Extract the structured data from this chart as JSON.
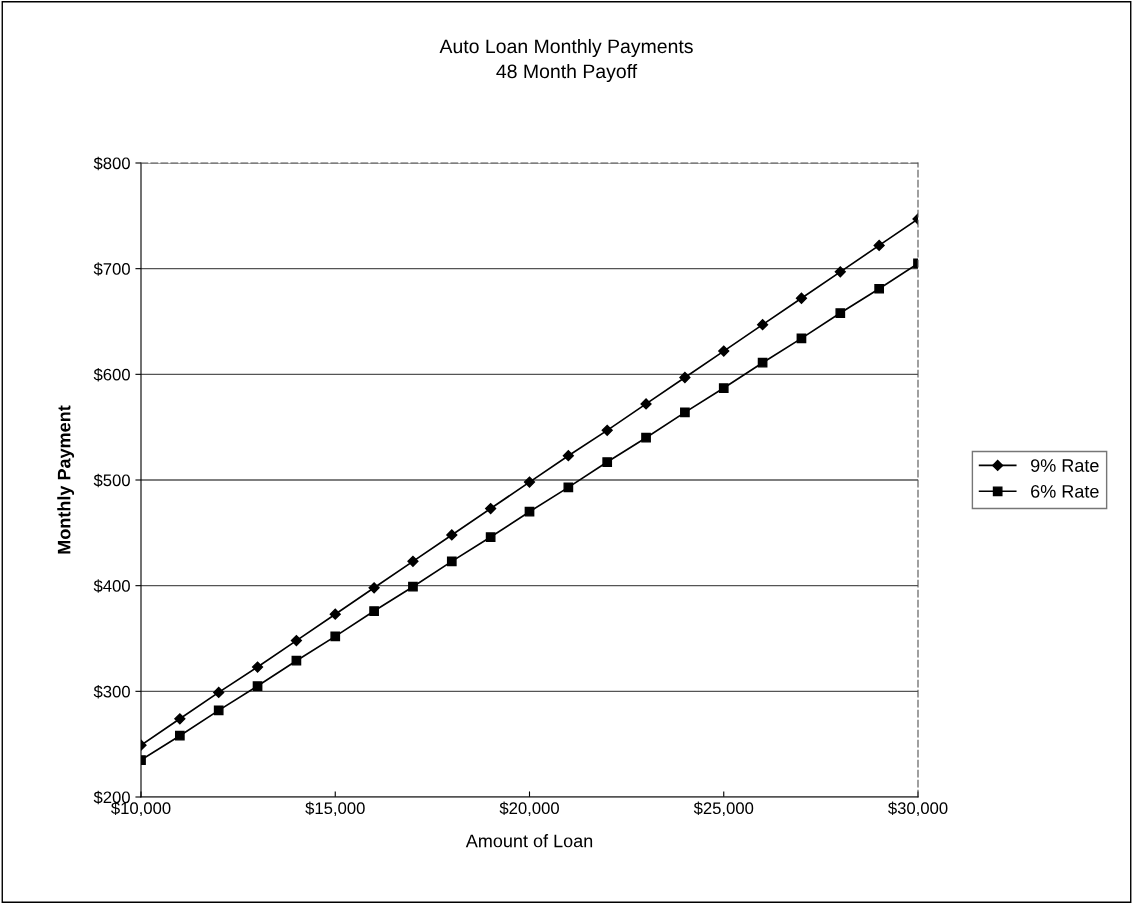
{
  "chart_data": {
    "type": "line",
    "title": "Auto Loan Monthly Payments",
    "subtitle": "48 Month Payoff",
    "xlabel": "Amount of Loan",
    "ylabel": "Monthly Payment",
    "x": [
      10000,
      11000,
      12000,
      13000,
      14000,
      15000,
      16000,
      17000,
      18000,
      19000,
      20000,
      21000,
      22000,
      23000,
      24000,
      25000,
      26000,
      27000,
      28000,
      29000,
      30000
    ],
    "series": [
      {
        "name": "9% Rate",
        "color": "#000000",
        "marker": "diamond",
        "values": [
          249,
          274,
          299,
          323,
          348,
          373,
          398,
          423,
          448,
          473,
          498,
          523,
          547,
          572,
          597,
          622,
          647,
          672,
          697,
          722,
          747
        ]
      },
      {
        "name": "6% Rate",
        "color": "#000000",
        "marker": "square",
        "values": [
          235,
          258,
          282,
          305,
          329,
          352,
          376,
          399,
          423,
          446,
          470,
          493,
          517,
          540,
          564,
          587,
          611,
          634,
          658,
          681,
          705
        ]
      }
    ],
    "xlim": [
      10000,
      30000
    ],
    "xticks": [
      {
        "value": 10000,
        "label": "$10,000"
      },
      {
        "value": 15000,
        "label": "$15,000"
      },
      {
        "value": 20000,
        "label": "$20,000"
      },
      {
        "value": 25000,
        "label": "$25,000"
      },
      {
        "value": 30000,
        "label": "$30,000"
      }
    ],
    "ylim": [
      200,
      800
    ],
    "yticks": [
      {
        "value": 200,
        "label": "$200"
      },
      {
        "value": 300,
        "label": "$300"
      },
      {
        "value": 400,
        "label": "$400"
      },
      {
        "value": 500,
        "label": "$500"
      },
      {
        "value": 600,
        "label": "$600"
      },
      {
        "value": 700,
        "label": "$700"
      },
      {
        "value": 800,
        "label": "$800"
      }
    ],
    "grid": "y",
    "legend": "right",
    "line_style": "solid"
  }
}
